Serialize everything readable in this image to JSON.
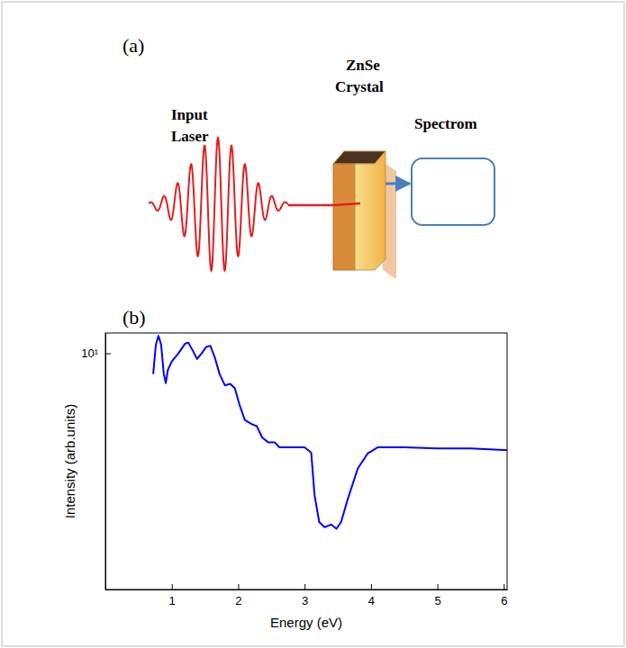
{
  "diagram": {
    "label": "(a)",
    "laser_label": [
      "Input",
      "Laser"
    ],
    "crystal_label": [
      "ZnSe",
      "Crystal"
    ],
    "detector_label": "Spectrom"
  },
  "chart_data": {
    "type": "line",
    "title": "(b)",
    "x_label": "Energy (eV)",
    "y_label": "Intensity (arb.units)",
    "x": [
      0.72,
      0.76,
      0.8,
      0.84,
      0.88,
      0.91,
      0.94,
      1.0,
      1.1,
      1.2,
      1.25,
      1.32,
      1.38,
      1.45,
      1.52,
      1.58,
      1.65,
      1.72,
      1.8,
      1.88,
      1.95,
      2.02,
      2.1,
      2.2,
      2.28,
      2.36,
      2.45,
      2.55,
      2.62,
      2.8,
      3.0,
      3.1,
      3.15,
      3.22,
      3.3,
      3.4,
      3.48,
      3.55,
      3.65,
      3.8,
      3.95,
      4.1,
      4.5,
      5.0,
      5.5,
      6.0,
      6.05
    ],
    "values": [
      8.3,
      10.8,
      11.7,
      10.8,
      8.3,
      7.65,
      8.6,
      9.3,
      10.0,
      10.9,
      11.0,
      10.2,
      9.5,
      10.0,
      10.6,
      10.7,
      9.6,
      8.3,
      7.5,
      7.6,
      7.3,
      6.3,
      5.5,
      5.3,
      5.2,
      4.7,
      4.5,
      4.5,
      4.3,
      4.3,
      4.3,
      4.1,
      2.8,
      2.2,
      2.1,
      2.15,
      2.07,
      2.2,
      2.7,
      3.55,
      4.07,
      4.3,
      4.3,
      4.26,
      4.26,
      4.2,
      4.2
    ],
    "color": "#0000ff",
    "log": "y",
    "grid": false,
    "xlim": [
      0,
      6.05
    ],
    "xticks": [
      1,
      2,
      3,
      4,
      5,
      6
    ],
    "ylim": [
      1.2,
      12
    ],
    "yticks": [
      {
        "value": 10,
        "label": "10¹"
      }
    ]
  }
}
